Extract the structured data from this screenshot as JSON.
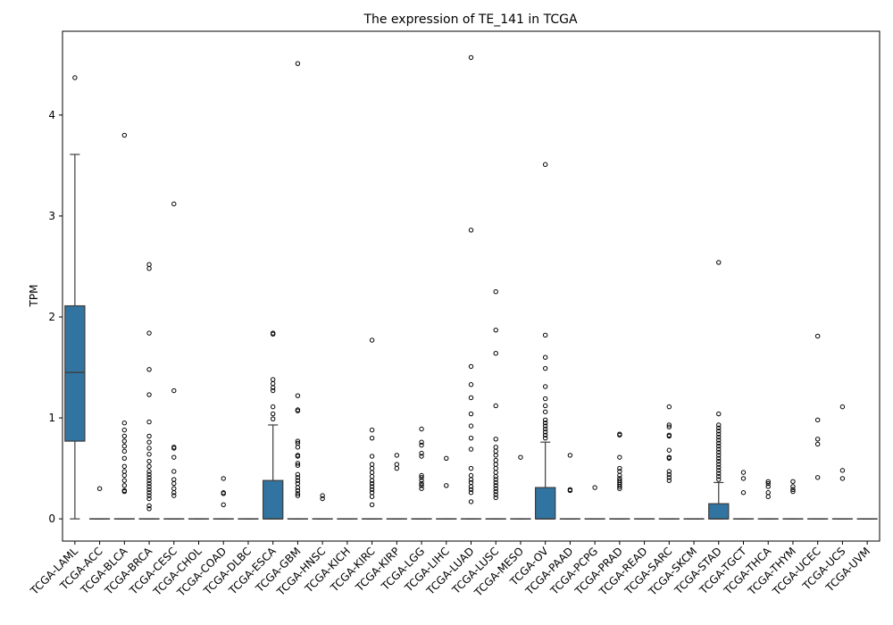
{
  "chart_data": {
    "type": "box",
    "title": "The expression of TE_141 in TCGA",
    "xlabel": "",
    "ylabel": "TPM",
    "ylim": [
      -0.22,
      4.83
    ],
    "yticks": [
      0,
      1,
      2,
      3,
      4
    ],
    "grid": false,
    "legend": "none",
    "box_color": "#3274a1",
    "edge_color": "#3d3d3d",
    "categories": [
      "TCGA-LAML",
      "TCGA-ACC",
      "TCGA-BLCA",
      "TCGA-BRCA",
      "TCGA-CESC",
      "TCGA-CHOL",
      "TCGA-COAD",
      "TCGA-DLBC",
      "TCGA-ESCA",
      "TCGA-GBM",
      "TCGA-HNSC",
      "TCGA-KICH",
      "TCGA-KIRC",
      "TCGA-KIRP",
      "TCGA-LGG",
      "TCGA-LIHC",
      "TCGA-LUAD",
      "TCGA-LUSC",
      "TCGA-MESO",
      "TCGA-OV",
      "TCGA-PAAD",
      "TCGA-PCPG",
      "TCGA-PRAD",
      "TCGA-READ",
      "TCGA-SARC",
      "TCGA-SKCM",
      "TCGA-STAD",
      "TCGA-TGCT",
      "TCGA-THCA",
      "TCGA-THYM",
      "TCGA-UCEC",
      "TCGA-UCS",
      "TCGA-UVM"
    ],
    "boxes": [
      {
        "category": "TCGA-LAML",
        "whislo": 0,
        "q1": 0.77,
        "med": 1.45,
        "q3": 2.11,
        "whishi": 3.61,
        "fliers": [
          4.37
        ]
      },
      {
        "category": "TCGA-ACC",
        "whislo": 0,
        "q1": 0,
        "med": 0,
        "q3": 0,
        "whishi": 0,
        "fliers": [
          0.3
        ]
      },
      {
        "category": "TCGA-BLCA",
        "whislo": 0,
        "q1": 0,
        "med": 0,
        "q3": 0,
        "whishi": 0,
        "fliers": [
          3.8,
          0.95,
          0.88,
          0.82,
          0.77,
          0.72,
          0.67,
          0.6,
          0.52,
          0.47,
          0.43,
          0.38,
          0.33,
          0.28,
          0.27
        ]
      },
      {
        "category": "TCGA-BRCA",
        "whislo": 0,
        "q1": 0,
        "med": 0,
        "q3": 0,
        "whishi": 0,
        "fliers": [
          2.52,
          2.48,
          1.84,
          1.48,
          1.23,
          0.96,
          0.82,
          0.76,
          0.7,
          0.64,
          0.57,
          0.52,
          0.47,
          0.44,
          0.41,
          0.38,
          0.35,
          0.32,
          0.29,
          0.26,
          0.23,
          0.2,
          0.13,
          0.1
        ]
      },
      {
        "category": "TCGA-CESC",
        "whislo": 0,
        "q1": 0,
        "med": 0,
        "q3": 0,
        "whishi": 0,
        "fliers": [
          3.12,
          1.27,
          0.71,
          0.7,
          0.61,
          0.47,
          0.39,
          0.35,
          0.3,
          0.26,
          0.23
        ]
      },
      {
        "category": "TCGA-CHOL",
        "whislo": 0,
        "q1": 0,
        "med": 0,
        "q3": 0,
        "whishi": 0,
        "fliers": []
      },
      {
        "category": "TCGA-COAD",
        "whislo": 0,
        "q1": 0,
        "med": 0,
        "q3": 0,
        "whishi": 0,
        "fliers": [
          0.4,
          0.26,
          0.25,
          0.14
        ]
      },
      {
        "category": "TCGA-DLBC",
        "whislo": 0,
        "q1": 0,
        "med": 0,
        "q3": 0,
        "whishi": 0,
        "fliers": []
      },
      {
        "category": "TCGA-ESCA",
        "whislo": 0,
        "q1": 0,
        "med": 0,
        "q3": 0.38,
        "whishi": 0.93,
        "fliers": [
          1.84,
          1.83,
          1.38,
          1.34,
          1.3,
          1.27,
          1.11,
          1.04,
          0.99
        ]
      },
      {
        "category": "TCGA-GBM",
        "whislo": 0,
        "q1": 0,
        "med": 0,
        "q3": 0,
        "whishi": 0,
        "fliers": [
          4.51,
          1.22,
          1.08,
          1.07,
          0.77,
          0.75,
          0.71,
          0.63,
          0.62,
          0.55,
          0.53,
          0.44,
          0.41,
          0.38,
          0.35,
          0.31,
          0.28,
          0.25,
          0.23
        ]
      },
      {
        "category": "TCGA-HNSC",
        "whislo": 0,
        "q1": 0,
        "med": 0,
        "q3": 0,
        "whishi": 0,
        "fliers": [
          0.23,
          0.2
        ]
      },
      {
        "category": "TCGA-KICH",
        "whislo": 0,
        "q1": 0,
        "med": 0,
        "q3": 0,
        "whishi": 0,
        "fliers": []
      },
      {
        "category": "TCGA-KIRC",
        "whislo": 0,
        "q1": 0,
        "med": 0,
        "q3": 0,
        "whishi": 0,
        "fliers": [
          1.77,
          0.88,
          0.8,
          0.62,
          0.54,
          0.5,
          0.46,
          0.42,
          0.38,
          0.35,
          0.32,
          0.29,
          0.26,
          0.22,
          0.14
        ]
      },
      {
        "category": "TCGA-KIRP",
        "whislo": 0,
        "q1": 0,
        "med": 0,
        "q3": 0,
        "whishi": 0,
        "fliers": [
          0.63,
          0.54,
          0.5
        ]
      },
      {
        "category": "TCGA-LGG",
        "whislo": 0,
        "q1": 0,
        "med": 0,
        "q3": 0,
        "whishi": 0,
        "fliers": [
          0.89,
          0.76,
          0.73,
          0.65,
          0.62,
          0.43,
          0.41,
          0.38,
          0.35,
          0.33,
          0.3
        ]
      },
      {
        "category": "TCGA-LIHC",
        "whislo": 0,
        "q1": 0,
        "med": 0,
        "q3": 0,
        "whishi": 0,
        "fliers": [
          0.6,
          0.33
        ]
      },
      {
        "category": "TCGA-LUAD",
        "whislo": 0,
        "q1": 0,
        "med": 0,
        "q3": 0,
        "whishi": 0,
        "fliers": [
          4.57,
          2.86,
          1.51,
          1.33,
          1.2,
          1.04,
          0.92,
          0.8,
          0.69,
          0.5,
          0.43,
          0.39,
          0.36,
          0.32,
          0.29,
          0.26,
          0.17
        ]
      },
      {
        "category": "TCGA-LUSC",
        "whislo": 0,
        "q1": 0,
        "med": 0,
        "q3": 0,
        "whishi": 0,
        "fliers": [
          2.25,
          1.87,
          1.64,
          1.12,
          0.79,
          0.71,
          0.67,
          0.63,
          0.58,
          0.54,
          0.5,
          0.46,
          0.42,
          0.39,
          0.36,
          0.33,
          0.3,
          0.27,
          0.24,
          0.21
        ]
      },
      {
        "category": "TCGA-MESO",
        "whislo": 0,
        "q1": 0,
        "med": 0,
        "q3": 0,
        "whishi": 0,
        "fliers": [
          0.61
        ]
      },
      {
        "category": "TCGA-OV",
        "whislo": 0,
        "q1": 0,
        "med": 0,
        "q3": 0.31,
        "whishi": 0.76,
        "fliers": [
          3.51,
          1.82,
          1.6,
          1.49,
          1.31,
          1.19,
          1.12,
          1.06,
          0.98,
          0.95,
          0.92,
          0.89,
          0.86,
          0.83,
          0.8
        ]
      },
      {
        "category": "TCGA-PAAD",
        "whislo": 0,
        "q1": 0,
        "med": 0,
        "q3": 0,
        "whishi": 0,
        "fliers": [
          0.63,
          0.29,
          0.28
        ]
      },
      {
        "category": "TCGA-PCPG",
        "whislo": 0,
        "q1": 0,
        "med": 0,
        "q3": 0,
        "whishi": 0,
        "fliers": [
          0.31
        ]
      },
      {
        "category": "TCGA-PRAD",
        "whislo": 0,
        "q1": 0,
        "med": 0,
        "q3": 0,
        "whishi": 0,
        "fliers": [
          0.84,
          0.83,
          0.61,
          0.5,
          0.47,
          0.43,
          0.4,
          0.38,
          0.36,
          0.34,
          0.32,
          0.3
        ]
      },
      {
        "category": "TCGA-READ",
        "whislo": 0,
        "q1": 0,
        "med": 0,
        "q3": 0,
        "whishi": 0,
        "fliers": []
      },
      {
        "category": "TCGA-SARC",
        "whislo": 0,
        "q1": 0,
        "med": 0,
        "q3": 0,
        "whishi": 0,
        "fliers": [
          1.11,
          0.93,
          0.91,
          0.83,
          0.82,
          0.68,
          0.61,
          0.6,
          0.47,
          0.44,
          0.41,
          0.38
        ]
      },
      {
        "category": "TCGA-SKCM",
        "whislo": 0,
        "q1": 0,
        "med": 0,
        "q3": 0,
        "whishi": 0,
        "fliers": []
      },
      {
        "category": "TCGA-STAD",
        "whislo": 0,
        "q1": 0,
        "med": 0,
        "q3": 0.15,
        "whishi": 0.36,
        "fliers": [
          2.54,
          1.04,
          0.93,
          0.9,
          0.87,
          0.84,
          0.81,
          0.78,
          0.75,
          0.72,
          0.69,
          0.66,
          0.63,
          0.6,
          0.57,
          0.54,
          0.51,
          0.48,
          0.45,
          0.42,
          0.39
        ]
      },
      {
        "category": "TCGA-TGCT",
        "whislo": 0,
        "q1": 0,
        "med": 0,
        "q3": 0,
        "whishi": 0,
        "fliers": [
          0.46,
          0.4,
          0.26
        ]
      },
      {
        "category": "TCGA-THCA",
        "whislo": 0,
        "q1": 0,
        "med": 0,
        "q3": 0,
        "whishi": 0,
        "fliers": [
          0.37,
          0.35,
          0.32,
          0.26,
          0.22
        ]
      },
      {
        "category": "TCGA-THYM",
        "whislo": 0,
        "q1": 0,
        "med": 0,
        "q3": 0,
        "whishi": 0,
        "fliers": [
          0.37,
          0.32,
          0.29,
          0.27
        ]
      },
      {
        "category": "TCGA-UCEC",
        "whislo": 0,
        "q1": 0,
        "med": 0,
        "q3": 0,
        "whishi": 0,
        "fliers": [
          1.81,
          0.98,
          0.79,
          0.74,
          0.41
        ]
      },
      {
        "category": "TCGA-UCS",
        "whislo": 0,
        "q1": 0,
        "med": 0,
        "q3": 0,
        "whishi": 0,
        "fliers": [
          1.11,
          0.48,
          0.4
        ]
      },
      {
        "category": "TCGA-UVM",
        "whislo": 0,
        "q1": 0,
        "med": 0,
        "q3": 0,
        "whishi": 0,
        "fliers": []
      }
    ]
  }
}
